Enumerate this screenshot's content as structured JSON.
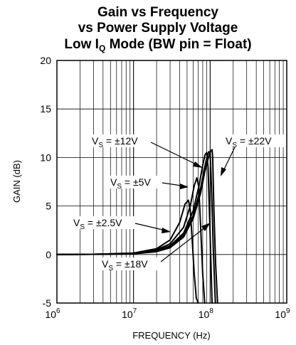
{
  "chart_data": {
    "type": "line",
    "title": {
      "line1": "Gain vs Frequency",
      "line2": "vs Power Supply Voltage",
      "line3_prefix": "Low I",
      "line3_sub": "Q",
      "line3_suffix": " Mode (BW pin = Float)"
    },
    "xlabel": "FREQUENCY (Hz)",
    "ylabel": "GAIN (dB)",
    "x_scale": "log",
    "xlim": [
      1000000,
      1000000000
    ],
    "ylim": [
      -5,
      20
    ],
    "grid": true,
    "x_ticks": [
      {
        "base": "10",
        "exp": "6",
        "value": 1000000
      },
      {
        "base": "10",
        "exp": "7",
        "value": 10000000
      },
      {
        "base": "10",
        "exp": "8",
        "value": 100000000
      },
      {
        "base": "10",
        "exp": "9",
        "value": 1000000000
      }
    ],
    "y_ticks": [
      {
        "label": "20",
        "value": 20
      },
      {
        "label": "15",
        "value": 15
      },
      {
        "label": "10",
        "value": 10
      },
      {
        "label": "5",
        "value": 5
      },
      {
        "label": "0",
        "value": 0
      },
      {
        "label": "-5",
        "value": -5
      }
    ],
    "series": [
      {
        "name": "VS = ±2.5V",
        "x": [
          1000000,
          3000000,
          10000000,
          20000000,
          30000000,
          40000000,
          47000000,
          52000000,
          55000000,
          58000000,
          62000000,
          66000000,
          70000000
        ],
        "y": [
          0,
          0.02,
          0.15,
          0.6,
          1.5,
          3.3,
          5.2,
          5.6,
          4.6,
          1.8,
          -2.0,
          -4.5,
          -5.0
        ]
      },
      {
        "name": "VS = ±5V",
        "x": [
          1000000,
          3000000,
          10000000,
          20000000,
          30000000,
          45000000,
          55000000,
          62000000,
          67000000,
          71000000,
          75000000,
          80000000,
          85000000
        ],
        "y": [
          0,
          0.02,
          0.12,
          0.5,
          1.1,
          2.8,
          5.0,
          7.1,
          7.9,
          7.0,
          3.0,
          -2.0,
          -5.0
        ]
      },
      {
        "name": "VS = ±12V",
        "x": [
          1000000,
          3000000,
          10000000,
          20000000,
          30000000,
          45000000,
          60000000,
          72000000,
          80000000,
          86000000,
          90000000,
          94000000,
          100000000,
          106000000
        ],
        "y": [
          0,
          0.02,
          0.1,
          0.4,
          0.9,
          2.2,
          4.5,
          7.2,
          9.2,
          10.3,
          10.5,
          9.0,
          2.0,
          -5.0
        ]
      },
      {
        "name": "VS = ±18V",
        "x": [
          1000000,
          3000000,
          10000000,
          20000000,
          30000000,
          45000000,
          60000000,
          75000000,
          85000000,
          92000000,
          96000000,
          100000000,
          104000000,
          110000000,
          117000000
        ],
        "y": [
          0,
          0.02,
          0.08,
          0.35,
          0.8,
          2.0,
          4.0,
          6.8,
          9.0,
          10.2,
          10.6,
          10.5,
          7.0,
          0.5,
          -5.0
        ]
      },
      {
        "name": "VS = ±22V",
        "x": [
          1000000,
          3000000,
          10000000,
          20000000,
          30000000,
          45000000,
          60000000,
          75000000,
          85000000,
          95000000,
          102000000,
          106000000,
          108000000,
          112000000,
          118000000,
          125000000
        ],
        "y": [
          0,
          0.02,
          0.07,
          0.3,
          0.7,
          1.8,
          3.7,
          6.3,
          8.5,
          10.0,
          10.7,
          10.8,
          10.0,
          4.5,
          -1.0,
          -5.0
        ]
      }
    ],
    "annotations": [
      {
        "prefix": "V",
        "sub": "S",
        "suffix": " = ±12V"
      },
      {
        "prefix": "V",
        "sub": "S",
        "suffix": " = ±5V"
      },
      {
        "prefix": "V",
        "sub": "S",
        "suffix": " = ±2.5V"
      },
      {
        "prefix": "V",
        "sub": "S",
        "suffix": " = ±18V"
      },
      {
        "prefix": "V",
        "sub": "S",
        "suffix": " = ±22V"
      }
    ]
  }
}
